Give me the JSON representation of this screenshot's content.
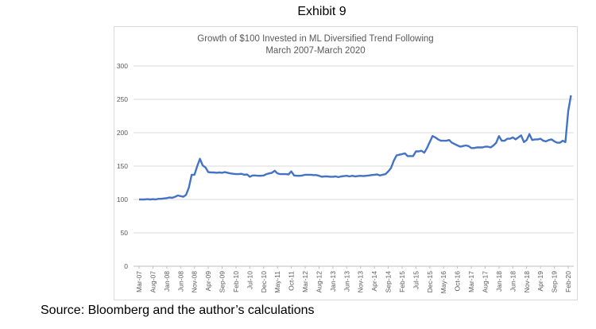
{
  "exhibit_label": "Exhibit 9",
  "source_note": "Source: Bloomberg and the author’s calculations",
  "chart_data": {
    "type": "line",
    "title": "Growth of $100 Invested in ML Diversified Trend Following",
    "subtitle": "March 2007-March 2020",
    "xlabel": "",
    "ylabel": "",
    "ylim": [
      0,
      300
    ],
    "yticks": [
      0,
      50,
      100,
      150,
      200,
      250,
      300
    ],
    "grid": true,
    "legend": "none",
    "line_color": "#4472c4",
    "x_tick_every_months": 5,
    "x_tick_labels": [
      "Mar-07",
      "Aug-07",
      "Jan-08",
      "Jun-08",
      "Nov-08",
      "Apr-09",
      "Sep-09",
      "Feb-10",
      "Jul-10",
      "Dec-10",
      "May-11",
      "Oct-11",
      "Mar-12",
      "Aug-12",
      "Jan-13",
      "Jun-13",
      "Nov-13",
      "Apr-14",
      "Sep-14",
      "Feb-15",
      "Jul-15",
      "Dec-15",
      "May-16",
      "Oct-16",
      "Mar-17",
      "Aug-17",
      "Jan-18",
      "Jun-18",
      "Nov-18",
      "Apr-19",
      "Sep-19",
      "Feb-20"
    ],
    "series": [
      {
        "name": "ML Diversified Trend Following",
        "frequency": "monthly",
        "start": "Mar-07",
        "values": [
          100,
          100,
          100,
          100.5,
          100,
          100.5,
          100,
          101,
          101,
          101.5,
          102,
          103,
          102.5,
          104,
          106,
          105,
          104,
          107,
          118,
          137,
          137,
          150,
          161,
          151,
          148,
          141,
          140.5,
          140.5,
          140,
          140.5,
          140,
          141,
          140,
          139,
          138.5,
          138,
          138,
          138.5,
          137,
          137.5,
          134,
          136,
          136,
          135.5,
          135.5,
          136,
          138,
          139,
          140,
          143,
          139,
          138,
          138,
          138,
          137.5,
          142,
          136,
          135.5,
          135.5,
          136,
          137,
          137,
          137,
          136.5,
          136.5,
          135.5,
          134,
          134.5,
          134.5,
          134,
          134,
          134.5,
          133.5,
          134.5,
          135,
          135.5,
          134.5,
          135.5,
          134.5,
          135,
          135.5,
          135,
          135.5,
          136,
          136.5,
          137,
          137.5,
          136,
          137,
          138,
          142,
          147,
          158,
          166,
          167,
          168,
          169,
          165,
          165,
          165,
          172,
          172,
          173,
          170,
          177,
          186,
          195,
          193,
          190,
          188,
          188,
          188,
          189,
          185,
          183,
          181,
          179,
          180,
          181,
          180,
          177,
          177,
          178,
          178,
          178,
          179,
          179,
          178,
          181,
          185,
          195,
          188,
          188,
          191,
          191,
          193,
          190,
          193,
          196,
          186,
          189,
          198,
          189,
          190,
          190,
          191,
          188,
          187,
          189,
          190,
          187,
          185,
          185,
          188,
          186,
          232,
          256
        ]
      }
    ]
  }
}
